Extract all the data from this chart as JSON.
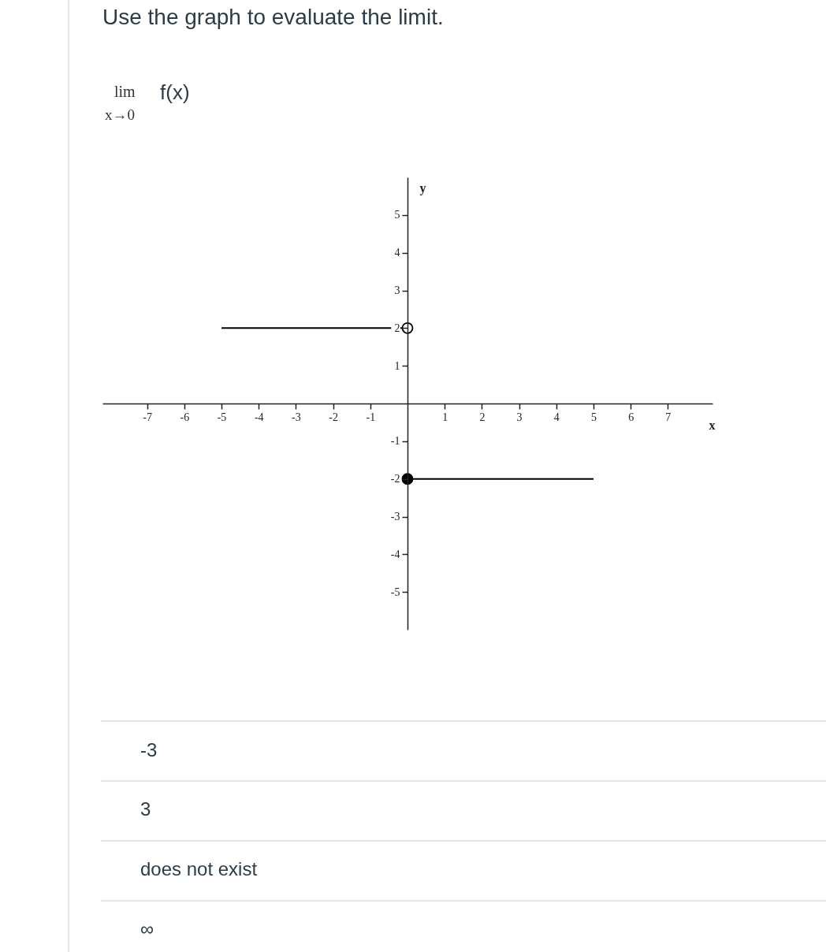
{
  "chart_data": {
    "type": "line",
    "title": "Use the graph to evaluate the limit.",
    "xlabel": "x",
    "ylabel": "y",
    "xlim": [
      -8.2,
      8.2
    ],
    "ylim": [
      -6,
      6
    ],
    "xticks": [
      -7,
      -6,
      -5,
      -4,
      -3,
      -2,
      -1,
      1,
      2,
      3,
      4,
      5,
      6,
      7
    ],
    "yticks": [
      -5,
      -4,
      -3,
      -2,
      -1,
      1,
      2,
      3,
      4,
      5
    ],
    "grid": false,
    "marker": "none",
    "line_style": "solid",
    "series": [
      {
        "color": "#000000",
        "x": [
          -5,
          0
        ],
        "values": [
          2,
          2
        ]
      },
      {
        "color": "#000000",
        "x": [
          0,
          5
        ],
        "values": [
          -2,
          -2
        ]
      },
      {
        "type": "scatter",
        "color": "#000000",
        "colors": [
          "#ffffff"
        ],
        "marker": "circle",
        "x": [
          0
        ],
        "values": [
          2
        ]
      },
      {
        "type": "scatter",
        "color": "#000000",
        "marker": "circle",
        "x": [
          0
        ],
        "values": [
          -2
        ]
      }
    ],
    "annotations": [
      "lim",
      "x→0",
      "f(x)",
      "-3",
      "3",
      "does not exist",
      "∞"
    ]
  }
}
